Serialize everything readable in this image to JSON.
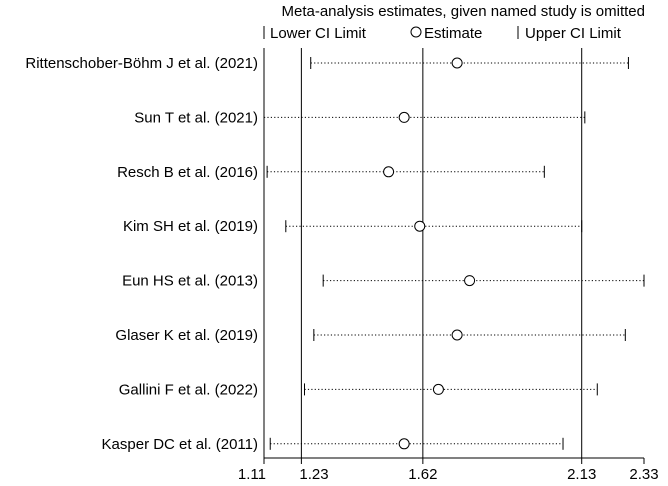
{
  "chart_data": {
    "type": "forest",
    "title": "Meta-analysis estimates, given named study is omitted",
    "legend": {
      "lower": "Lower CI Limit",
      "estimate": "Estimate",
      "upper": "Upper CI Limit"
    },
    "x_ticks": [
      1.11,
      1.23,
      1.62,
      2.13,
      2.33
    ],
    "x_tick_labels": [
      "1.11",
      "1.23",
      "1.62",
      "2.13",
      "2.33"
    ],
    "reference_lines": [
      1.23,
      1.62,
      2.13
    ],
    "xlim": [
      1.11,
      2.33
    ],
    "studies": [
      {
        "label": "Rittenschober-Böhm J et al. (2021)",
        "lower": 1.26,
        "estimate": 1.73,
        "upper": 2.28
      },
      {
        "label": "Sun T et al. (2021)",
        "lower": 1.11,
        "estimate": 1.56,
        "upper": 2.14
      },
      {
        "label": "Resch B et al. (2016)",
        "lower": 1.12,
        "estimate": 1.51,
        "upper": 2.01
      },
      {
        "label": "Kim SH et al. (2019)",
        "lower": 1.18,
        "estimate": 1.61,
        "upper": 2.13
      },
      {
        "label": "Eun HS et al. (2013)",
        "lower": 1.3,
        "estimate": 1.77,
        "upper": 2.33
      },
      {
        "label": "Glaser K et al. (2019)",
        "lower": 1.27,
        "estimate": 1.73,
        "upper": 2.27
      },
      {
        "label": "Gallini F et al. (2022)",
        "lower": 1.24,
        "estimate": 1.67,
        "upper": 2.18
      },
      {
        "label": "Kasper DC et al.  (2011)",
        "lower": 1.13,
        "estimate": 1.56,
        "upper": 2.07
      }
    ]
  }
}
